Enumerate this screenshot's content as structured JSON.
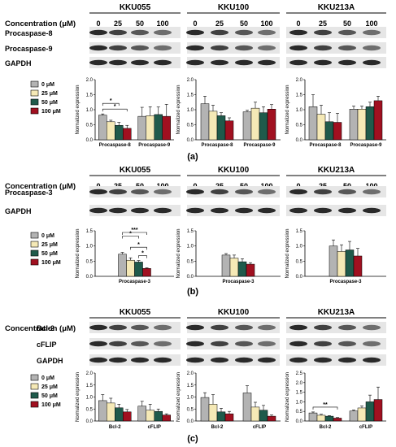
{
  "colors": {
    "c0": "#b3b3b3",
    "c25": "#f5e9b6",
    "c50": "#1f5a4b",
    "c100": "#a01020",
    "blot_bg": "#e6e6e6",
    "blot_band": "#2a2a2a"
  },
  "panels": [
    {
      "label": "(a)",
      "header_label": "Concentration (μM)",
      "cell_lines": [
        "KKU055",
        "KKU100",
        "KKU213A"
      ],
      "concentrations": [
        "0",
        "25",
        "50",
        "100"
      ],
      "blot_rows": [
        "Procaspase-8",
        "Procaspase-9",
        "GAPDH"
      ],
      "legend": [
        "0 μM",
        "25 μM",
        "50 μM",
        "100 μM"
      ]
    },
    {
      "label": "(b)",
      "header_label": "Concentration (μM)",
      "cell_lines": [
        "KKU055",
        "KKU100",
        "KKU213A"
      ],
      "concentrations": [
        "0",
        "25",
        "50",
        "100"
      ],
      "blot_rows": [
        "Procaspase-3",
        "GAPDH"
      ],
      "legend": [
        "0 μM",
        "25 μM",
        "50 μM",
        "100 μM"
      ]
    },
    {
      "label": "(c)",
      "header_label": "Concentration (μM)",
      "cell_lines": [
        "KKU055",
        "KKU100",
        "KKU213A"
      ],
      "concentrations": [
        "0",
        "25",
        "50",
        "100"
      ],
      "blot_rows": [
        "Bcl-2",
        "cFLIP",
        "GAPDH"
      ],
      "legend": [
        "0 μM",
        "25 μM",
        "50 μM",
        "100 μM"
      ]
    }
  ],
  "chart_data": [
    {
      "panel": "(a)",
      "cell_line": "KKU055",
      "type": "bar",
      "ylabel": "Normalized expression",
      "ylim": [
        0,
        2.0
      ],
      "yticks": [
        "0.0",
        "0.5",
        "1.0",
        "1.5",
        "2.0"
      ],
      "categories": [
        "Procaspase-8",
        "Procaspase-9"
      ],
      "series": [
        {
          "name": "0 μM",
          "values": [
            0.82,
            0.78
          ],
          "errors": [
            0.04,
            0.3
          ]
        },
        {
          "name": "25 μM",
          "values": [
            0.6,
            0.8
          ],
          "errors": [
            0.05,
            0.3
          ]
        },
        {
          "name": "50 μM",
          "values": [
            0.48,
            0.84
          ],
          "errors": [
            0.1,
            0.25
          ]
        },
        {
          "name": "100 μM",
          "values": [
            0.38,
            0.78
          ],
          "errors": [
            0.1,
            0.4
          ]
        }
      ],
      "significance": [
        {
          "from": 0,
          "to": 2,
          "cat": 0,
          "label": "*"
        },
        {
          "from": 0,
          "to": 3,
          "cat": 0,
          "label": "*"
        }
      ]
    },
    {
      "panel": "(a)",
      "cell_line": "KKU100",
      "type": "bar",
      "ylabel": "Normalized expression",
      "ylim": [
        0,
        2.0
      ],
      "yticks": [
        "0.0",
        "0.5",
        "1.0",
        "1.5",
        "2.0"
      ],
      "categories": [
        "Procaspase-8",
        "Procaspase-9"
      ],
      "series": [
        {
          "name": "0 μM",
          "values": [
            1.2,
            0.93
          ],
          "errors": [
            0.25,
            0.05
          ]
        },
        {
          "name": "25 μM",
          "values": [
            0.95,
            1.05
          ],
          "errors": [
            0.2,
            0.2
          ]
        },
        {
          "name": "50 μM",
          "values": [
            0.8,
            0.9
          ],
          "errors": [
            0.1,
            0.2
          ]
        },
        {
          "name": "100 μM",
          "values": [
            0.63,
            1.02
          ],
          "errors": [
            0.1,
            0.15
          ]
        }
      ],
      "significance": []
    },
    {
      "panel": "(a)",
      "cell_line": "KKU213A",
      "type": "bar",
      "ylabel": "Normalized expression",
      "ylim": [
        0,
        2.0
      ],
      "yticks": [
        "0.0",
        "0.5",
        "1.0",
        "1.5",
        "2.0"
      ],
      "categories": [
        "Procaspase-8",
        "Procaspase-9"
      ],
      "series": [
        {
          "name": "0 μM",
          "values": [
            1.1,
            1.02
          ],
          "errors": [
            0.4,
            0.1
          ]
        },
        {
          "name": "25 μM",
          "values": [
            0.85,
            1.02
          ],
          "errors": [
            0.3,
            0.1
          ]
        },
        {
          "name": "50 μM",
          "values": [
            0.6,
            1.1
          ],
          "errors": [
            0.3,
            0.15
          ]
        },
        {
          "name": "100 μM",
          "values": [
            0.58,
            1.3
          ],
          "errors": [
            0.3,
            0.15
          ]
        }
      ],
      "significance": []
    },
    {
      "panel": "(b)",
      "cell_line": "KKU055",
      "type": "bar",
      "ylabel": "Normalized expression",
      "ylim": [
        0,
        1.5
      ],
      "yticks": [
        "0.0",
        "0.5",
        "1.0",
        "1.5"
      ],
      "categories": [
        "Procaspase-3"
      ],
      "series": [
        {
          "name": "0 μM",
          "values": [
            0.73
          ],
          "errors": [
            0.06
          ]
        },
        {
          "name": "25 μM",
          "values": [
            0.53
          ],
          "errors": [
            0.08
          ]
        },
        {
          "name": "50 μM",
          "values": [
            0.47
          ],
          "errors": [
            0.05
          ]
        },
        {
          "name": "100 μM",
          "values": [
            0.26
          ],
          "errors": [
            0.02
          ]
        }
      ],
      "significance": [
        {
          "from": 0,
          "to": 3,
          "cat": 0,
          "label": "***"
        },
        {
          "from": 0,
          "to": 2,
          "cat": 0,
          "label": "*"
        },
        {
          "from": 1,
          "to": 3,
          "cat": 0,
          "label": "*"
        },
        {
          "from": 2,
          "to": 3,
          "cat": 0,
          "label": "*"
        }
      ]
    },
    {
      "panel": "(b)",
      "cell_line": "KKU100",
      "type": "bar",
      "ylabel": "Normalized expression",
      "ylim": [
        0,
        1.5
      ],
      "yticks": [
        "0.0",
        "0.5",
        "1.0",
        "1.5"
      ],
      "categories": [
        "Procaspase-3"
      ],
      "series": [
        {
          "name": "0 μM",
          "values": [
            0.7
          ],
          "errors": [
            0.05
          ]
        },
        {
          "name": "25 μM",
          "values": [
            0.6
          ],
          "errors": [
            0.1
          ]
        },
        {
          "name": "50 μM",
          "values": [
            0.48
          ],
          "errors": [
            0.1
          ]
        },
        {
          "name": "100 μM",
          "values": [
            0.4
          ],
          "errors": [
            0.05
          ]
        }
      ],
      "significance": []
    },
    {
      "panel": "(b)",
      "cell_line": "KKU213A",
      "type": "bar",
      "ylabel": "Normalized expression",
      "ylim": [
        0,
        1.5
      ],
      "yticks": [
        "0.0",
        "0.5",
        "1.0",
        "1.5"
      ],
      "categories": [
        "Procaspase-3"
      ],
      "series": [
        {
          "name": "0 μM",
          "values": [
            1.0
          ],
          "errors": [
            0.2
          ]
        },
        {
          "name": "25 μM",
          "values": [
            0.82
          ],
          "errors": [
            0.22
          ]
        },
        {
          "name": "50 μM",
          "values": [
            0.87
          ],
          "errors": [
            0.28
          ]
        },
        {
          "name": "100 μM",
          "values": [
            0.67
          ],
          "errors": [
            0.25
          ]
        }
      ],
      "significance": []
    },
    {
      "panel": "(c)",
      "cell_line": "KKU055",
      "type": "bar",
      "ylabel": "Normalized expression",
      "ylim": [
        0,
        2.0
      ],
      "yticks": [
        "0.0",
        "0.5",
        "1.0",
        "1.5",
        "2.0"
      ],
      "categories": [
        "Bcl-2",
        "cFLIP"
      ],
      "series": [
        {
          "name": "0 μM",
          "values": [
            0.85,
            0.62
          ],
          "errors": [
            0.25,
            0.2
          ]
        },
        {
          "name": "25 μM",
          "values": [
            0.75,
            0.45
          ],
          "errors": [
            0.2,
            0.25
          ]
        },
        {
          "name": "50 μM",
          "values": [
            0.55,
            0.4
          ],
          "errors": [
            0.15,
            0.1
          ]
        },
        {
          "name": "100 μM",
          "values": [
            0.38,
            0.25
          ],
          "errors": [
            0.1,
            0.05
          ]
        }
      ],
      "significance": []
    },
    {
      "panel": "(c)",
      "cell_line": "KKU100",
      "type": "bar",
      "ylabel": "Normalized expression",
      "ylim": [
        0,
        2.0
      ],
      "yticks": [
        "0.0",
        "0.5",
        "1.0",
        "1.5",
        "2.0"
      ],
      "categories": [
        "Bcl-2",
        "cFLIP"
      ],
      "series": [
        {
          "name": "0 μM",
          "values": [
            0.98,
            1.17
          ],
          "errors": [
            0.2,
            0.3
          ]
        },
        {
          "name": "25 μM",
          "values": [
            0.7,
            0.58
          ],
          "errors": [
            0.4,
            0.2
          ]
        },
        {
          "name": "50 μM",
          "values": [
            0.38,
            0.45
          ],
          "errors": [
            0.15,
            0.2
          ]
        },
        {
          "name": "100 μM",
          "values": [
            0.3,
            0.2
          ],
          "errors": [
            0.1,
            0.05
          ]
        }
      ],
      "significance": []
    },
    {
      "panel": "(c)",
      "cell_line": "KKU213A",
      "type": "bar",
      "ylabel": "Normalized expression",
      "ylim": [
        0,
        2.5
      ],
      "yticks": [
        "0.0",
        "0.5",
        "1.0",
        "1.5",
        "2.0",
        "2.5"
      ],
      "categories": [
        "Bcl-2",
        "cFLIP"
      ],
      "series": [
        {
          "name": "0 μM",
          "values": [
            0.42,
            0.52
          ],
          "errors": [
            0.05,
            0.05
          ]
        },
        {
          "name": "25 μM",
          "values": [
            0.3,
            0.68
          ],
          "errors": [
            0.05,
            0.1
          ]
        },
        {
          "name": "50 μM",
          "values": [
            0.25,
            1.0
          ],
          "errors": [
            0.03,
            0.35
          ]
        },
        {
          "name": "100 μM",
          "values": [
            0.15,
            1.12
          ],
          "errors": [
            0.03,
            0.65
          ]
        }
      ],
      "significance": [
        {
          "from": 0,
          "to": 3,
          "cat": 0,
          "label": "**"
        }
      ]
    }
  ]
}
